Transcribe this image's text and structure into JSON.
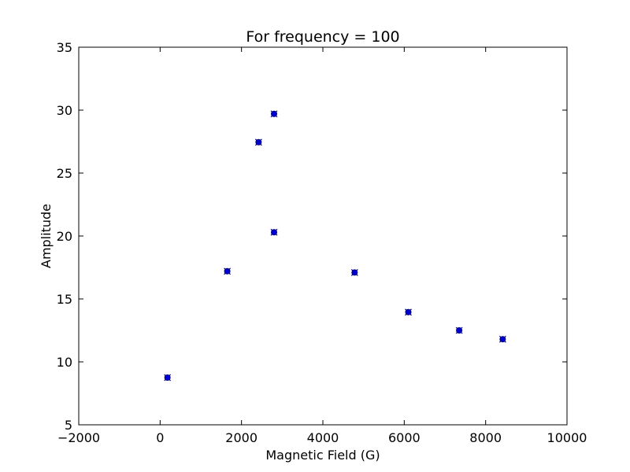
{
  "chart_data": {
    "type": "scatter",
    "title": "For frequency = 100",
    "xlabel": "Magnetic Field (G)",
    "ylabel": "Amplitude",
    "xlim": [
      -2000,
      10000
    ],
    "ylim": [
      5,
      35
    ],
    "xticks": [
      -2000,
      0,
      2000,
      4000,
      6000,
      8000,
      10000
    ],
    "yticks": [
      5,
      10,
      15,
      20,
      25,
      30,
      35
    ],
    "grid": false,
    "marker_color": "#0000cc",
    "marker_outline": "#000080",
    "points": [
      {
        "x": 180,
        "y": 8.75
      },
      {
        "x": 1650,
        "y": 17.2
      },
      {
        "x": 2420,
        "y": 27.45
      },
      {
        "x": 2800,
        "y": 29.7
      },
      {
        "x": 2800,
        "y": 20.3
      },
      {
        "x": 4780,
        "y": 17.1
      },
      {
        "x": 6100,
        "y": 13.95
      },
      {
        "x": 7350,
        "y": 12.5
      },
      {
        "x": 8420,
        "y": 11.8
      }
    ]
  }
}
